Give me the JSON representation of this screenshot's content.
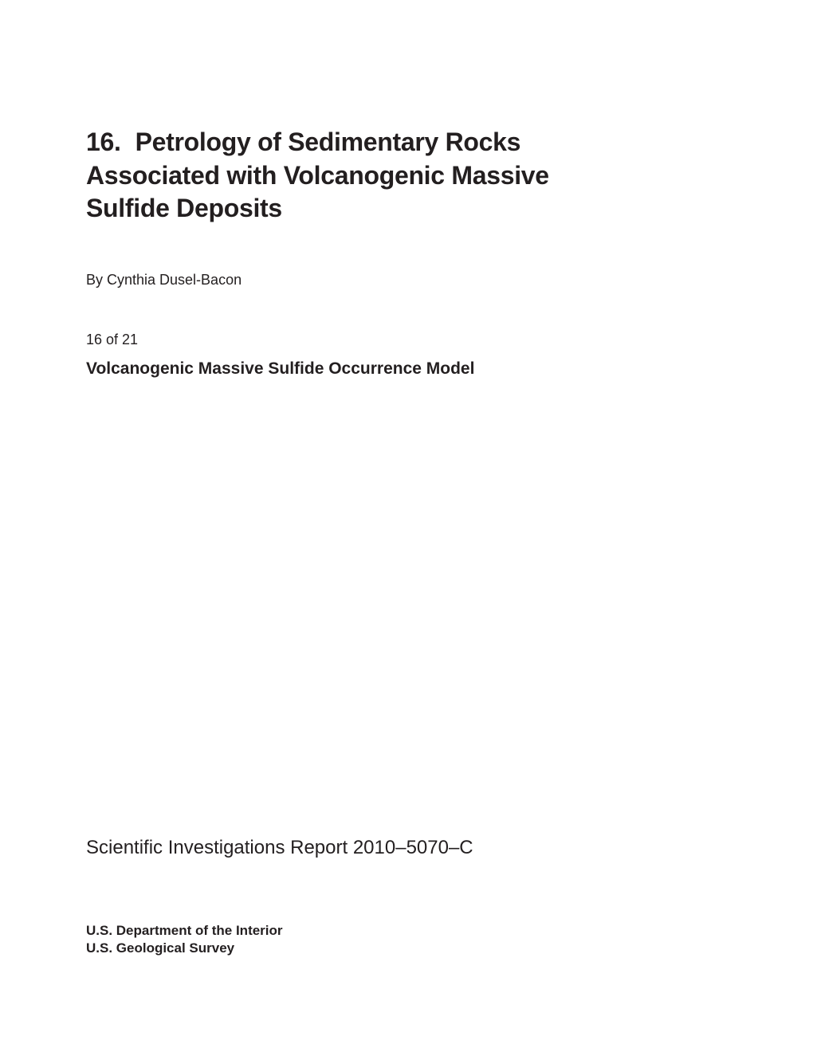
{
  "chapter": {
    "number": "16.",
    "title": "Petrology of Sedimentary Rocks Associated with Volcanogenic Massive Sulfide Deposits"
  },
  "author": "By Cynthia Dusel-Bacon",
  "pageIndicator": "16 of 21",
  "subtitle": "Volcanogenic Massive Sulfide Occurrence Model",
  "reportLine": "Scientific Investigations Report 2010–5070–C",
  "footer": {
    "line1": "U.S. Department of the Interior",
    "line2": "U.S. Geological Survey"
  },
  "colors": {
    "background": "#ffffff",
    "text": "#231f20"
  }
}
